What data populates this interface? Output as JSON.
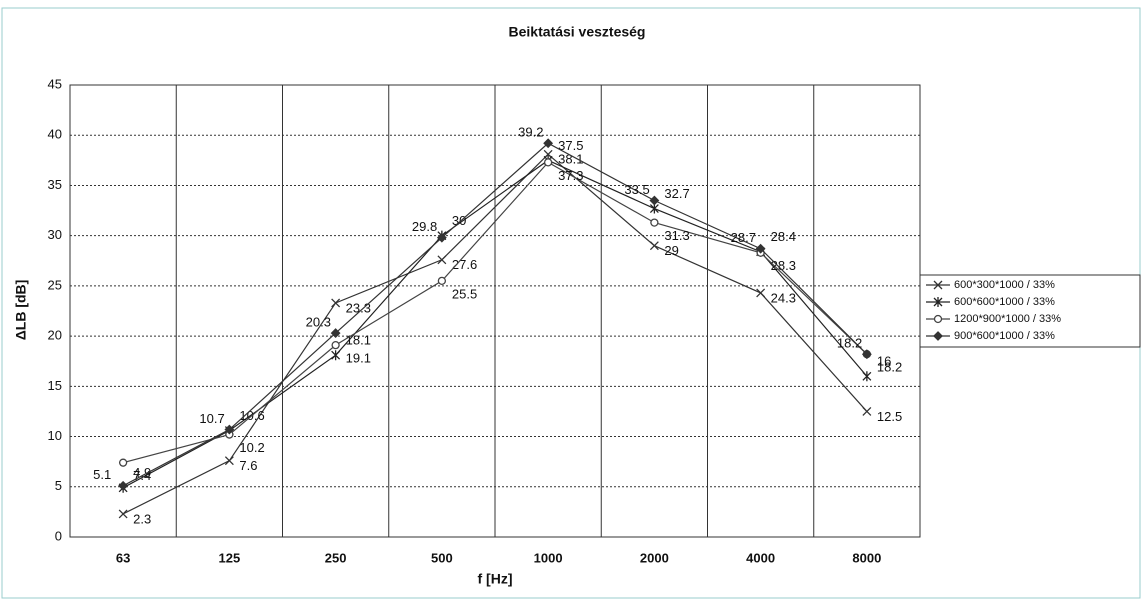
{
  "chart_data": {
    "type": "line",
    "title": "Beiktatási veszteség",
    "xlabel": "f [Hz]",
    "ylabel": "ΔLB [dB]",
    "categories": [
      "63",
      "125",
      "250",
      "500",
      "1000",
      "2000",
      "4000",
      "8000"
    ],
    "series": [
      {
        "name": "600*300*1000 / 33%",
        "color": "#333333",
        "marker": "x",
        "values": [
          2.3,
          7.6,
          23.3,
          27.6,
          38.1,
          29,
          24.3,
          12.5
        ]
      },
      {
        "name": "600*600*1000 / 33%",
        "color": "#222222",
        "marker": "star",
        "values": [
          4.9,
          10.6,
          18.1,
          30,
          37.5,
          32.7,
          28.4,
          16
        ]
      },
      {
        "name": "1200*900*1000 / 33%",
        "color": "#444444",
        "marker": "circle",
        "values": [
          7.4,
          10.2,
          19.1,
          25.5,
          37.3,
          31.3,
          28.3,
          18.2
        ]
      },
      {
        "name": "900*600*1000 / 33%",
        "color": "#333333",
        "marker": "diamond",
        "values": [
          5.1,
          10.7,
          20.3,
          29.8,
          39.2,
          33.5,
          28.7,
          18.2
        ]
      }
    ],
    "ylim": [
      0,
      45
    ],
    "yticks": [
      0,
      5,
      10,
      15,
      20,
      25,
      30,
      35,
      40,
      45
    ],
    "grid": true,
    "legend": "right"
  }
}
